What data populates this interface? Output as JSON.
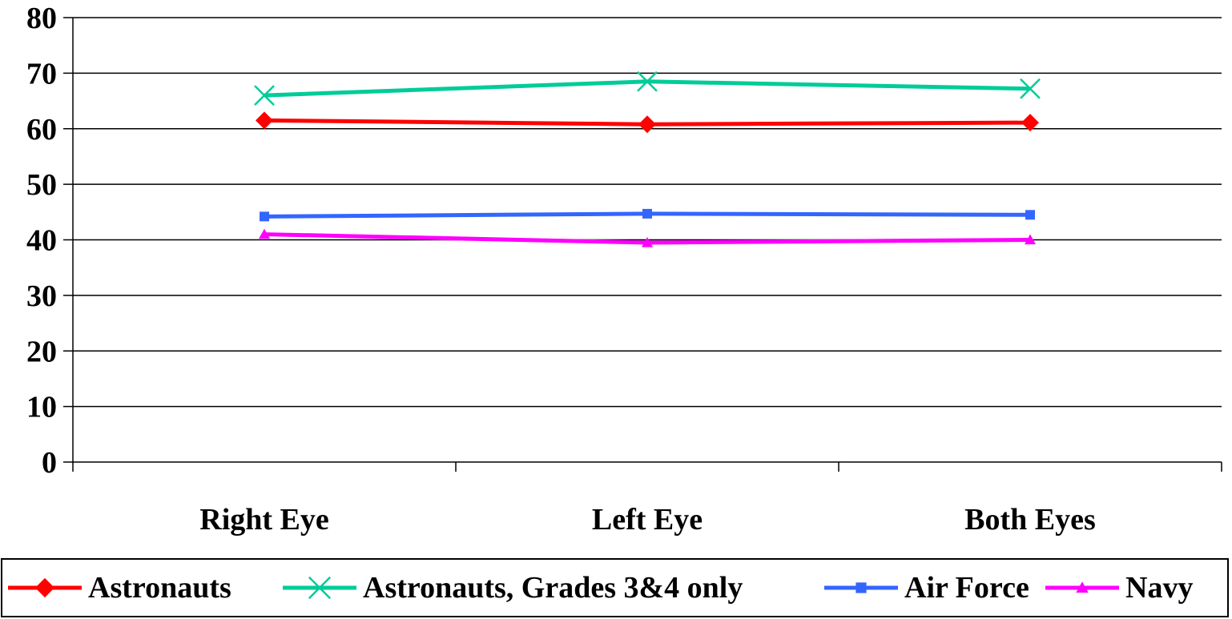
{
  "chart_data": {
    "type": "line",
    "title": "",
    "xlabel": "",
    "ylabel": "",
    "categories": [
      "Right Eye",
      "Left Eye",
      "Both Eyes"
    ],
    "ylim": [
      0,
      80
    ],
    "yticks": [
      0,
      10,
      20,
      30,
      40,
      50,
      60,
      70,
      80
    ],
    "grid": "horizontal",
    "legend_position": "bottom",
    "series": [
      {
        "name": "Astronauts",
        "values": [
          61.5,
          60.8,
          61.1
        ],
        "color": "#ff0000",
        "marker": "diamond"
      },
      {
        "name": "Astronauts, Grades 3&4 only",
        "values": [
          66.0,
          68.5,
          67.2
        ],
        "color": "#00cc99",
        "marker": "x"
      },
      {
        "name": "Air Force",
        "values": [
          44.2,
          44.7,
          44.5
        ],
        "color": "#3366ff",
        "marker": "square"
      },
      {
        "name": "Navy",
        "values": [
          41.0,
          39.5,
          40.0
        ],
        "color": "#ff00ff",
        "marker": "triangle"
      }
    ]
  }
}
